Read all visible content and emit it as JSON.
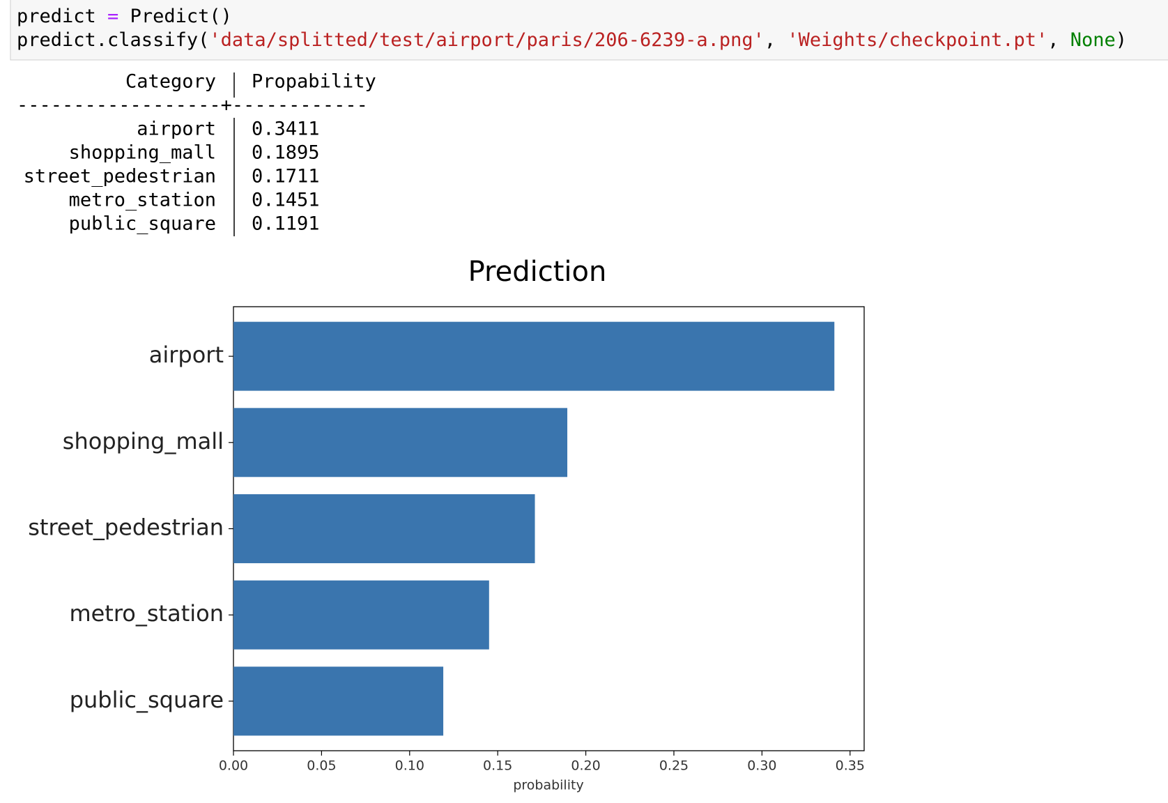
{
  "code": {
    "lines": [
      [
        {
          "text": "predict ",
          "color": "#000000"
        },
        {
          "text": "=",
          "color": "#aa22ff"
        },
        {
          "text": " Predict()",
          "color": "#000000"
        }
      ],
      [
        {
          "text": "predict.classify(",
          "color": "#000000"
        },
        {
          "text": "'data/splitted/test/airport/paris/206-6239-a.png'",
          "color": "#ba2121"
        },
        {
          "text": ", ",
          "color": "#000000"
        },
        {
          "text": "'Weights/checkpoint.pt'",
          "color": "#ba2121"
        },
        {
          "text": ", ",
          "color": "#000000"
        },
        {
          "text": "None",
          "color": "#008000"
        },
        {
          "text": ")",
          "color": "#000000"
        }
      ]
    ]
  },
  "output_table": {
    "header": [
      "Category",
      "Propability"
    ],
    "separator": "------------------+------------",
    "rows": [
      [
        "airport",
        0.3411
      ],
      [
        "shopping_mall",
        0.1895
      ],
      [
        "street_pedestrian",
        0.1711
      ],
      [
        "metro_station",
        0.1451
      ],
      [
        "public_square",
        0.1191
      ]
    ]
  },
  "chart_data": {
    "type": "barh",
    "title": "Prediction",
    "xlabel": "probability",
    "categories": [
      "airport",
      "shopping_mall",
      "street_pedestrian",
      "metro_station",
      "public_square"
    ],
    "values": [
      0.3411,
      0.1895,
      0.1711,
      0.1451,
      0.1191
    ],
    "color": "#3a75ae",
    "xlim": [
      0,
      0.358
    ],
    "xticks": [
      {
        "value": 0,
        "label": "0.00"
      },
      0.05,
      {
        "value": 0.1,
        "label": "0.10"
      },
      0.15,
      {
        "value": 0.2,
        "label": "0.20"
      },
      0.25,
      {
        "value": 0.3,
        "label": "0.30"
      },
      0.35
    ],
    "grid": false
  }
}
